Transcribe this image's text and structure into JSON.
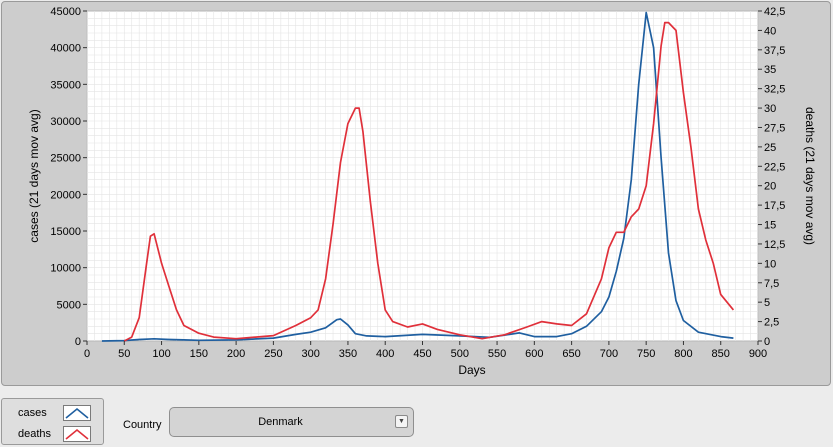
{
  "legend": {
    "cases_label": "cases",
    "deaths_label": "deaths"
  },
  "country": {
    "label": "Country",
    "selected": "Denmark"
  },
  "colors": {
    "cases": "#1f5fa0",
    "deaths": "#e0303a",
    "plot_background": "#ffffff",
    "grid": "#e4e4e4",
    "panel": "#cdcdcd"
  },
  "chart_data": {
    "type": "line",
    "xlabel": "Days",
    "ylabel_left": "cases  (21 days mov avg)",
    "ylabel_right": "deaths  (21 days mov avg)",
    "xlim": [
      0,
      900
    ],
    "ylim_left": [
      0,
      45000
    ],
    "ylim_right": [
      0,
      42.5
    ],
    "x_ticks": [
      0,
      50,
      100,
      150,
      200,
      250,
      300,
      350,
      400,
      450,
      500,
      550,
      600,
      650,
      700,
      750,
      800,
      850,
      900
    ],
    "y_ticks_left": [
      0,
      5000,
      10000,
      15000,
      20000,
      25000,
      30000,
      35000,
      40000,
      45000
    ],
    "y_tick_labels_right": [
      "0",
      "2,5",
      "5",
      "7,5",
      "10",
      "12,5",
      "15",
      "17,5",
      "20",
      "22,5",
      "25",
      "27,5",
      "30",
      "32,5",
      "35",
      "37,5",
      "40",
      "42,5"
    ],
    "grid": true,
    "series": [
      {
        "name": "cases",
        "axis": "left",
        "x": [
          20,
          50,
          70,
          90,
          110,
          130,
          150,
          200,
          250,
          280,
          300,
          320,
          335,
          340,
          350,
          360,
          375,
          400,
          450,
          500,
          540,
          560,
          580,
          600,
          630,
          650,
          670,
          690,
          700,
          710,
          720,
          730,
          740,
          750,
          760,
          770,
          780,
          790,
          800,
          820,
          850,
          867
        ],
        "values": [
          0,
          50,
          200,
          300,
          200,
          150,
          100,
          150,
          400,
          900,
          1200,
          1800,
          2900,
          3000,
          2200,
          1000,
          700,
          600,
          900,
          700,
          500,
          800,
          1100,
          600,
          600,
          1000,
          2000,
          4000,
          6000,
          9500,
          14000,
          22000,
          35000,
          44800,
          40000,
          25000,
          12000,
          5500,
          2800,
          1200,
          600,
          400
        ]
      },
      {
        "name": "deaths",
        "axis": "right",
        "x": [
          50,
          60,
          70,
          80,
          85,
          90,
          100,
          110,
          120,
          130,
          140,
          150,
          170,
          200,
          250,
          280,
          300,
          310,
          320,
          330,
          340,
          350,
          360,
          365,
          370,
          380,
          390,
          400,
          410,
          430,
          450,
          470,
          500,
          530,
          560,
          590,
          610,
          630,
          650,
          670,
          690,
          700,
          710,
          720,
          730,
          740,
          750,
          760,
          770,
          775,
          780,
          790,
          800,
          810,
          820,
          830,
          840,
          850,
          867
        ],
        "values": [
          0,
          0.5,
          3,
          10,
          13.5,
          13.8,
          10,
          7,
          4,
          2,
          1.5,
          1,
          0.5,
          0.3,
          0.7,
          2,
          3,
          4,
          8,
          15,
          23,
          28,
          30,
          30,
          27,
          18,
          10,
          4,
          2.5,
          1.8,
          2.2,
          1.5,
          0.8,
          0.3,
          0.8,
          1.8,
          2.5,
          2.2,
          2,
          3.5,
          8,
          12,
          14,
          14,
          16,
          17,
          20,
          28,
          38,
          41,
          41,
          40,
          32,
          25,
          17,
          13,
          10,
          6,
          4
        ]
      }
    ]
  }
}
